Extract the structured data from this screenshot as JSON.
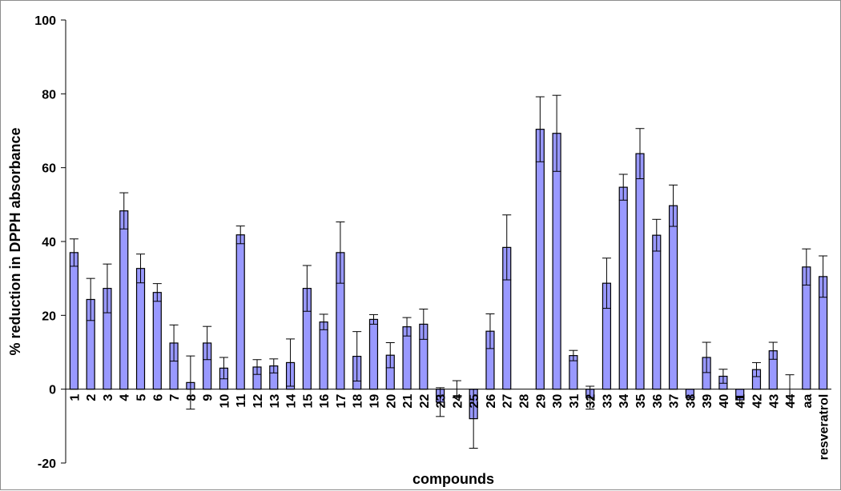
{
  "chart_data": {
    "type": "bar",
    "title": "",
    "xlabel": "compounds",
    "ylabel": "% reduction in DPPH absorbance",
    "ylim": [
      -20,
      100
    ],
    "yticks": [
      -20,
      0,
      20,
      40,
      60,
      80,
      100
    ],
    "grid": false,
    "categories": [
      "1",
      "2",
      "3",
      "4",
      "5",
      "6",
      "7",
      "8",
      "9",
      "10",
      "11",
      "12",
      "13",
      "14",
      "15",
      "16",
      "17",
      "18",
      "19",
      "20",
      "21",
      "22",
      "23",
      "24",
      "25",
      "26",
      "27",
      "28",
      "29",
      "30",
      "31",
      "32",
      "33",
      "34",
      "35",
      "36",
      "37",
      "38",
      "39",
      "40",
      "41",
      "42",
      "43",
      "44",
      "aa",
      "resveratrol"
    ],
    "values": [
      37,
      24.3,
      27.3,
      48.3,
      32.7,
      26.2,
      12.5,
      1.8,
      12.5,
      5.7,
      41.8,
      6.0,
      6.3,
      7.2,
      27.3,
      18.2,
      37.0,
      8.9,
      18.9,
      9.2,
      16.9,
      17.6,
      -3.5,
      0.0,
      -8.0,
      15.7,
      38.4,
      0.0,
      70.4,
      69.3,
      9.1,
      -2.3,
      28.7,
      54.7,
      63.8,
      41.7,
      49.7,
      -2.3,
      8.6,
      3.5,
      -2.9,
      5.3,
      10.4,
      0.0,
      33.1,
      30.5
    ],
    "errors": [
      3.7,
      5.7,
      6.6,
      4.9,
      3.9,
      2.4,
      4.9,
      7.2,
      4.5,
      2.9,
      2.4,
      2.0,
      1.9,
      6.4,
      6.2,
      2.1,
      8.3,
      6.7,
      1.3,
      3.4,
      2.5,
      4.1,
      3.9,
      2.3,
      8.0,
      4.7,
      8.8,
      0.0,
      8.8,
      10.3,
      1.4,
      3.1,
      6.8,
      3.5,
      6.8,
      4.3,
      5.6,
      0.0,
      4.1,
      1.9,
      1.0,
      1.9,
      2.3,
      3.9,
      4.9,
      5.6
    ],
    "series_color": "#9999ff"
  }
}
